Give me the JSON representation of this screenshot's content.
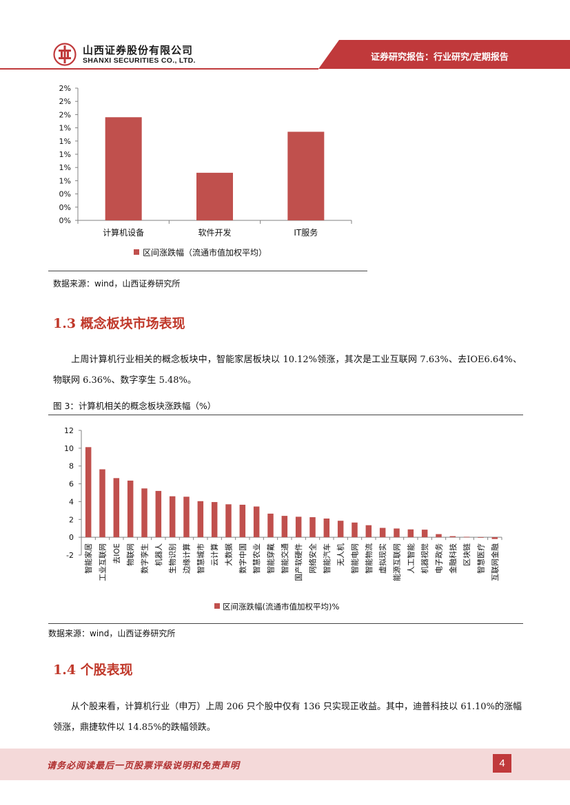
{
  "header": {
    "company_cn": "山西证券股份有限公司",
    "company_en": "SHANXI SECURITIES CO., LTD.",
    "report_type": "证券研究报告：行业研究/定期报告",
    "brand_color": "#c0393b"
  },
  "chart_data": [
    {
      "type": "bar",
      "categories": [
        "计算机设备",
        "软件开发",
        "IT服务"
      ],
      "series": [
        {
          "name": "区间涨跌幅（流通市值加权平均）",
          "values": [
            1.56,
            0.72,
            1.34
          ]
        }
      ],
      "ytick_labels": [
        "0%",
        "0%",
        "0%",
        "1%",
        "1%",
        "1%",
        "1%",
        "1%",
        "2%",
        "2%",
        "2%"
      ],
      "ylim": [
        0,
        2.0
      ],
      "color": "#c0504d",
      "legend_position": "bottom"
    },
    {
      "type": "bar",
      "categories": [
        "智能家居",
        "工业互联网",
        "去IOE",
        "物联网",
        "数字孪生",
        "机器人",
        "生物识别",
        "边缘计算",
        "智慧城市",
        "云计算",
        "大数据",
        "数字中国",
        "智慧农业",
        "智能穿戴",
        "智能交通",
        "国产软硬件",
        "网络安全",
        "智能汽车",
        "无人机",
        "智能电网",
        "智能物流",
        "虚拟现实",
        "能源互联网",
        "人工智能",
        "机器视觉",
        "电子政务",
        "金融科技",
        "区块链",
        "智慧医疗",
        "互联网金融"
      ],
      "series": [
        {
          "name": "区间涨跌幅(流通市值加权平均)%",
          "values": [
            10.12,
            7.63,
            6.64,
            6.36,
            5.48,
            5.2,
            4.6,
            4.55,
            4.05,
            3.95,
            3.7,
            3.65,
            3.45,
            2.65,
            2.4,
            2.3,
            2.25,
            2.1,
            1.85,
            1.65,
            1.35,
            1.05,
            0.98,
            0.88,
            0.85,
            0.35,
            0.12,
            0.05,
            -0.05,
            -0.2
          ]
        }
      ],
      "yticks": [
        -2,
        0,
        2,
        4,
        6,
        8,
        10,
        12
      ],
      "ylim": [
        -2,
        12
      ],
      "color": "#c0504d",
      "legend_position": "bottom"
    }
  ],
  "source1": "数据来源：wind，山西证券研究所",
  "section_13": {
    "title": "1.3 概念板块市场表现",
    "para": "上周计算机行业相关的概念板块中，智能家居板块以 10.12%领涨，其次是工业互联网 7.63%、去IOE6.64%、物联网 6.36%、数字孪生 5.48%。"
  },
  "figure3_caption": "图 3：计算机相关的概念板块涨跌幅（%）",
  "source2": "数据来源：wind，山西证券研究所",
  "section_14": {
    "title": "1.4 个股表现",
    "para": "从个股来看，计算机行业（申万）上周 206 只个股中仅有 136 只实现正收益。其中，迪普科技以 61.10%的涨幅领涨，鼎捷软件以 14.85%的跌幅领跌。"
  },
  "footer": {
    "disclaimer": "请务必阅读最后一页股票评级说明和免责声明",
    "page_number": "4"
  }
}
